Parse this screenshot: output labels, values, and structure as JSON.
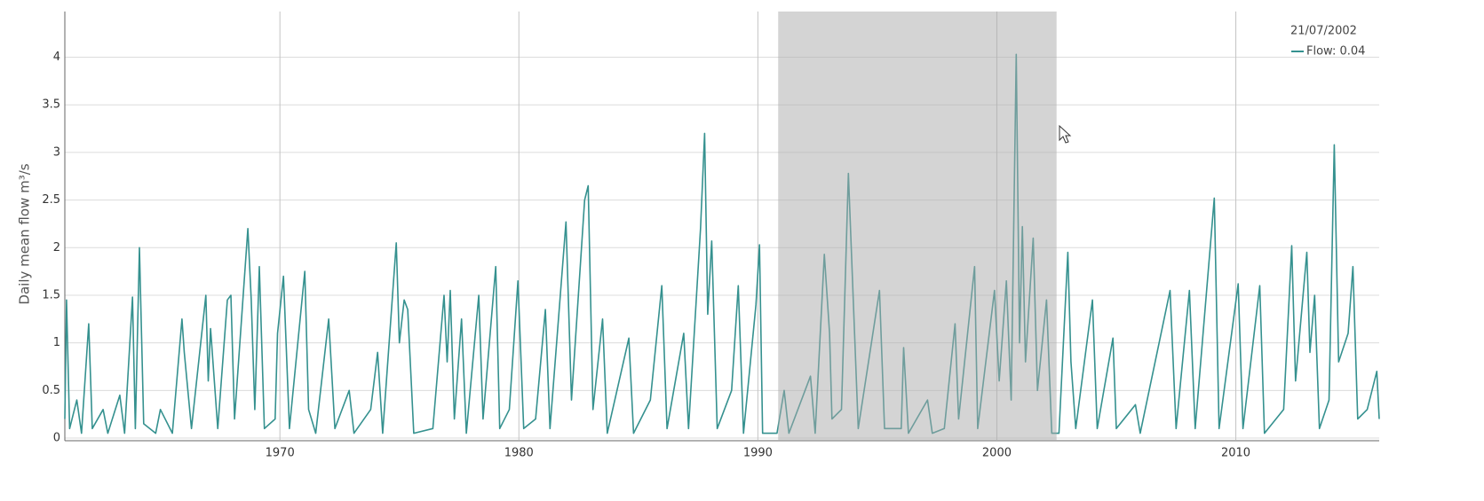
{
  "chart_data": {
    "type": "line",
    "y_label": "Daily mean flow m³/s",
    "xlim": [
      1961,
      2016
    ],
    "xticks": [
      1970,
      1980,
      1990,
      2000,
      2010
    ],
    "ylim": [
      0,
      4.48
    ],
    "yticks": [
      0,
      0.5,
      1,
      1.5,
      2,
      2.5,
      3,
      3.5,
      4
    ],
    "grid": true,
    "selection_x": [
      1990.85,
      2002.5
    ],
    "tooltip": {
      "date": "21/07/2002",
      "text": "Flow: 0.04"
    },
    "series": [
      {
        "name": "Flow",
        "color": "#35918f",
        "x": [
          1961.0,
          1961.07,
          1961.2,
          1961.5,
          1961.7,
          1962.0,
          1962.15,
          1962.6,
          1962.8,
          1963.3,
          1963.5,
          1963.83,
          1963.95,
          1964.12,
          1964.3,
          1964.8,
          1965.0,
          1965.5,
          1965.9,
          1966.0,
          1966.3,
          1966.9,
          1967.0,
          1967.1,
          1967.4,
          1967.8,
          1967.95,
          1968.1,
          1968.66,
          1968.8,
          1968.95,
          1969.14,
          1969.35,
          1969.8,
          1969.9,
          1970.15,
          1970.4,
          1971.04,
          1971.2,
          1971.5,
          1972.04,
          1972.3,
          1972.9,
          1973.1,
          1973.8,
          1974.09,
          1974.3,
          1974.87,
          1975.0,
          1975.2,
          1975.35,
          1975.6,
          1976.4,
          1976.87,
          1977.0,
          1977.13,
          1977.3,
          1977.6,
          1977.8,
          1978.32,
          1978.5,
          1979.03,
          1979.2,
          1979.6,
          1979.96,
          1980.2,
          1980.7,
          1981.11,
          1981.3,
          1981.97,
          1982.2,
          1982.75,
          1982.9,
          1983.1,
          1983.5,
          1983.7,
          1984.6,
          1984.8,
          1985.5,
          1985.98,
          1986.2,
          1986.9,
          1987.1,
          1987.6,
          1987.77,
          1987.9,
          1988.07,
          1988.3,
          1988.9,
          1989.18,
          1989.4,
          1989.92,
          1990.07,
          1990.2,
          1990.8,
          1991.1,
          1991.3,
          1992.2,
          1992.4,
          1992.78,
          1993.0,
          1993.1,
          1993.5,
          1993.79,
          1994.0,
          1994.2,
          1995.09,
          1995.3,
          1996.0,
          1996.1,
          1996.3,
          1997.1,
          1997.3,
          1997.8,
          1998.25,
          1998.4,
          1999.07,
          1999.2,
          1999.9,
          2000.1,
          2000.4,
          2000.6,
          2000.81,
          2000.95,
          2001.07,
          2001.2,
          2001.52,
          2001.7,
          2002.08,
          2002.3,
          2002.6,
          2002.97,
          2003.1,
          2003.3,
          2004.0,
          2004.2,
          2004.86,
          2005.0,
          2005.8,
          2006.0,
          2007.25,
          2007.5,
          2008.06,
          2008.3,
          2009.1,
          2009.3,
          2010.1,
          2010.3,
          2011.0,
          2011.2,
          2012.0,
          2012.34,
          2012.5,
          2012.97,
          2013.1,
          2013.3,
          2013.5,
          2013.9,
          2014.12,
          2014.3,
          2014.7,
          2014.9,
          2015.1,
          2015.5,
          2015.9,
          2016.0
        ],
        "values": [
          0.2,
          1.45,
          0.1,
          0.4,
          0.05,
          1.2,
          0.1,
          0.3,
          0.05,
          0.45,
          0.05,
          1.48,
          0.1,
          2.0,
          0.15,
          0.05,
          0.3,
          0.05,
          1.25,
          0.9,
          0.1,
          1.5,
          0.6,
          1.15,
          0.1,
          1.45,
          1.5,
          0.2,
          2.2,
          1.45,
          0.3,
          1.8,
          0.1,
          0.2,
          1.1,
          1.7,
          0.1,
          1.75,
          0.3,
          0.05,
          1.25,
          0.1,
          0.5,
          0.05,
          0.3,
          0.9,
          0.05,
          2.05,
          1.0,
          1.45,
          1.35,
          0.05,
          0.1,
          1.5,
          0.8,
          1.55,
          0.2,
          1.25,
          0.05,
          1.5,
          0.2,
          1.8,
          0.1,
          0.3,
          1.65,
          0.1,
          0.2,
          1.35,
          0.1,
          2.27,
          0.4,
          2.5,
          2.65,
          0.3,
          1.25,
          0.05,
          1.05,
          0.05,
          0.4,
          1.6,
          0.1,
          1.1,
          0.1,
          2.2,
          3.2,
          1.3,
          2.07,
          0.1,
          0.5,
          1.6,
          0.05,
          1.4,
          2.03,
          0.05,
          0.05,
          0.5,
          0.05,
          0.65,
          0.05,
          1.93,
          1.1,
          0.2,
          0.3,
          2.78,
          1.4,
          0.1,
          1.55,
          0.1,
          0.1,
          0.95,
          0.05,
          0.4,
          0.05,
          0.1,
          1.2,
          0.2,
          1.8,
          0.1,
          1.55,
          0.6,
          1.65,
          0.4,
          4.03,
          1.0,
          2.22,
          0.8,
          2.1,
          0.5,
          1.45,
          0.05,
          0.05,
          1.95,
          0.8,
          0.1,
          1.45,
          0.1,
          1.05,
          0.1,
          0.35,
          0.05,
          1.55,
          0.1,
          1.55,
          0.1,
          2.52,
          0.1,
          1.62,
          0.1,
          1.6,
          0.05,
          0.3,
          2.02,
          0.6,
          1.95,
          0.9,
          1.5,
          0.1,
          0.4,
          3.08,
          0.8,
          1.1,
          1.8,
          0.2,
          0.3,
          0.7,
          0.2
        ]
      }
    ]
  }
}
